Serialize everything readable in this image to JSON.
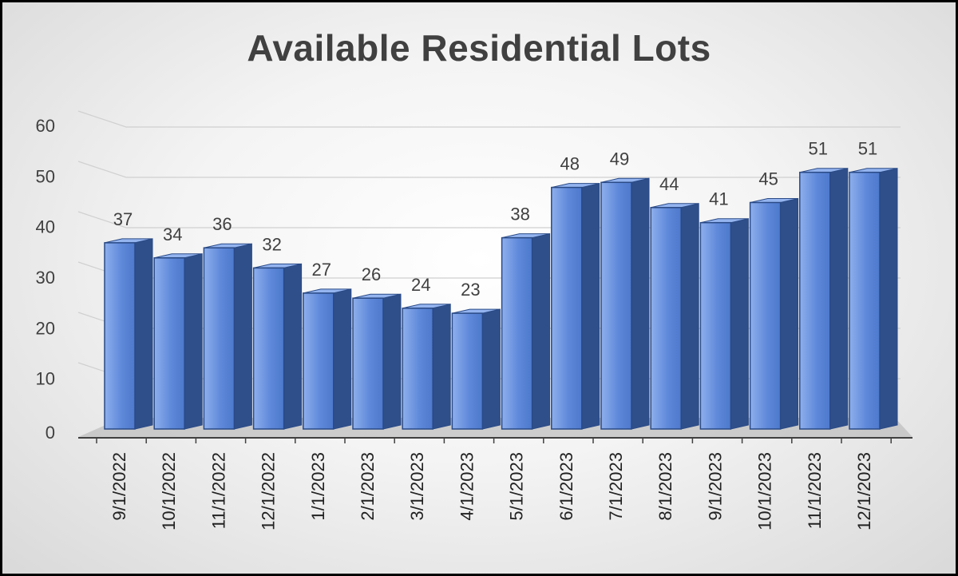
{
  "chart_data": {
    "type": "bar",
    "title": "Available Residential Lots",
    "xlabel": "",
    "ylabel": "",
    "ylim": [
      0,
      60
    ],
    "yticks": [
      0,
      10,
      20,
      30,
      40,
      50,
      60
    ],
    "grid": true,
    "style": "3d-column",
    "categories": [
      "9/1/2022",
      "10/1/2022",
      "11/1/2022",
      "12/1/2022",
      "1/1/2023",
      "2/1/2023",
      "3/1/2023",
      "4/1/2023",
      "5/1/2023",
      "6/1/2023",
      "7/1/2023",
      "8/1/2023",
      "9/1/2023",
      "10/1/2023",
      "11/1/2023",
      "12/1/2023"
    ],
    "values": [
      37,
      34,
      36,
      32,
      27,
      26,
      24,
      23,
      38,
      48,
      49,
      44,
      41,
      45,
      51,
      51
    ],
    "colors": {
      "bar_front": "#5b85d6",
      "bar_light": "#7fa2e6",
      "bar_side": "#2f4f8a",
      "bar_top": "#94b4f0",
      "bar_edge": "#2a4a86",
      "floor": "#bfbfbf",
      "gridline": "#d0d0d0",
      "axis": "#404040"
    }
  }
}
